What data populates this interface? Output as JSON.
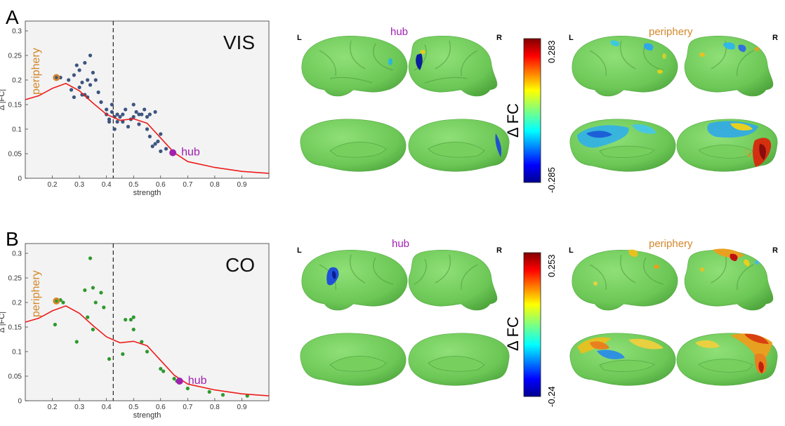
{
  "panels": [
    {
      "letter": "A",
      "network": "VIS",
      "hub_label": "hub",
      "periphery_label": "periphery",
      "hemi_left": "L",
      "hemi_right": "R",
      "colorbar": {
        "label": "Δ FC",
        "max": "0.283",
        "min": "-0.285"
      },
      "colors": {
        "points": "#3d5580",
        "periphery": "#d4872a",
        "hub": "#a020b0",
        "curve": "#ee1c1c"
      }
    },
    {
      "letter": "B",
      "network": "CO",
      "hub_label": "hub",
      "periphery_label": "periphery",
      "hemi_left": "L",
      "hemi_right": "R",
      "colorbar": {
        "label": "Δ FC",
        "max": "0.253",
        "min": "-0.24"
      },
      "colors": {
        "points": "#2e9a2e",
        "periphery": "#d4872a",
        "hub": "#a020b0",
        "curve": "#ee1c1c"
      }
    }
  ],
  "chart_data": [
    {
      "type": "scatter",
      "title": "VIS",
      "xlabel": "strength",
      "ylabel": "Δ |FC|",
      "xlim": [
        0.1,
        1.0
      ],
      "ylim": [
        0,
        0.32
      ],
      "xticks": [
        "0.2",
        "0.3",
        "0.4",
        "0.5",
        "0.6",
        "0.7",
        "0.8",
        "0.9"
      ],
      "yticks": [
        "0",
        "0.05",
        "0.1",
        "0.15",
        "0.2",
        "0.25",
        "0.3"
      ],
      "threshold_x": 0.425,
      "grid": false,
      "points": [
        [
          0.23,
          0.205
        ],
        [
          0.26,
          0.2
        ],
        [
          0.27,
          0.18
        ],
        [
          0.28,
          0.165
        ],
        [
          0.28,
          0.21
        ],
        [
          0.29,
          0.23
        ],
        [
          0.3,
          0.185
        ],
        [
          0.3,
          0.22
        ],
        [
          0.31,
          0.17
        ],
        [
          0.31,
          0.195
        ],
        [
          0.32,
          0.235
        ],
        [
          0.32,
          0.17
        ],
        [
          0.33,
          0.165
        ],
        [
          0.33,
          0.2
        ],
        [
          0.34,
          0.25
        ],
        [
          0.34,
          0.19
        ],
        [
          0.35,
          0.215
        ],
        [
          0.36,
          0.2
        ],
        [
          0.37,
          0.175
        ],
        [
          0.38,
          0.155
        ],
        [
          0.4,
          0.14
        ],
        [
          0.4,
          0.13
        ],
        [
          0.41,
          0.12
        ],
        [
          0.41,
          0.115
        ],
        [
          0.42,
          0.15
        ],
        [
          0.42,
          0.135
        ],
        [
          0.43,
          0.125
        ],
        [
          0.43,
          0.1
        ],
        [
          0.44,
          0.13
        ],
        [
          0.44,
          0.115
        ],
        [
          0.45,
          0.125
        ],
        [
          0.46,
          0.13
        ],
        [
          0.46,
          0.115
        ],
        [
          0.47,
          0.14
        ],
        [
          0.48,
          0.105
        ],
        [
          0.49,
          0.12
        ],
        [
          0.5,
          0.125
        ],
        [
          0.5,
          0.15
        ],
        [
          0.51,
          0.135
        ],
        [
          0.52,
          0.13
        ],
        [
          0.52,
          0.11
        ],
        [
          0.53,
          0.13
        ],
        [
          0.54,
          0.14
        ],
        [
          0.55,
          0.125
        ],
        [
          0.55,
          0.1
        ],
        [
          0.56,
          0.13
        ],
        [
          0.56,
          0.085
        ],
        [
          0.57,
          0.065
        ],
        [
          0.58,
          0.135
        ],
        [
          0.58,
          0.07
        ],
        [
          0.59,
          0.075
        ],
        [
          0.6,
          0.09
        ],
        [
          0.6,
          0.055
        ],
        [
          0.62,
          0.06
        ]
      ],
      "periphery_point": [
        0.215,
        0.205
      ],
      "hub_point": [
        0.645,
        0.052
      ],
      "curve": [
        [
          0.1,
          0.16
        ],
        [
          0.15,
          0.168
        ],
        [
          0.2,
          0.183
        ],
        [
          0.25,
          0.193
        ],
        [
          0.3,
          0.178
        ],
        [
          0.35,
          0.153
        ],
        [
          0.4,
          0.13
        ],
        [
          0.45,
          0.118
        ],
        [
          0.5,
          0.121
        ],
        [
          0.55,
          0.112
        ],
        [
          0.6,
          0.082
        ],
        [
          0.65,
          0.052
        ],
        [
          0.7,
          0.034
        ],
        [
          0.8,
          0.022
        ],
        [
          0.9,
          0.014
        ],
        [
          1.0,
          0.01
        ]
      ]
    },
    {
      "type": "scatter",
      "title": "CO",
      "xlabel": "strength",
      "ylabel": "Δ |FC|",
      "xlim": [
        0.1,
        1.0
      ],
      "ylim": [
        0,
        0.32
      ],
      "xticks": [
        "0.2",
        "0.3",
        "0.4",
        "0.5",
        "0.6",
        "0.7",
        "0.8",
        "0.9"
      ],
      "yticks": [
        "0",
        "0.05",
        "0.1",
        "0.15",
        "0.2",
        "0.25",
        "0.3"
      ],
      "threshold_x": 0.425,
      "grid": false,
      "points": [
        [
          0.21,
          0.155
        ],
        [
          0.23,
          0.205
        ],
        [
          0.24,
          0.2
        ],
        [
          0.29,
          0.12
        ],
        [
          0.32,
          0.225
        ],
        [
          0.33,
          0.17
        ],
        [
          0.34,
          0.29
        ],
        [
          0.35,
          0.23
        ],
        [
          0.35,
          0.145
        ],
        [
          0.36,
          0.2
        ],
        [
          0.38,
          0.22
        ],
        [
          0.39,
          0.19
        ],
        [
          0.41,
          0.085
        ],
        [
          0.46,
          0.095
        ],
        [
          0.47,
          0.165
        ],
        [
          0.49,
          0.165
        ],
        [
          0.5,
          0.17
        ],
        [
          0.5,
          0.145
        ],
        [
          0.53,
          0.12
        ],
        [
          0.55,
          0.1
        ],
        [
          0.6,
          0.065
        ],
        [
          0.61,
          0.06
        ],
        [
          0.65,
          0.045
        ],
        [
          0.66,
          0.04
        ],
        [
          0.7,
          0.025
        ],
        [
          0.78,
          0.018
        ],
        [
          0.83,
          0.012
        ],
        [
          0.92,
          0.01
        ]
      ],
      "periphery_point": [
        0.215,
        0.203
      ],
      "hub_point": [
        0.67,
        0.04
      ],
      "curve": [
        [
          0.1,
          0.16
        ],
        [
          0.15,
          0.168
        ],
        [
          0.2,
          0.183
        ],
        [
          0.25,
          0.193
        ],
        [
          0.3,
          0.178
        ],
        [
          0.35,
          0.153
        ],
        [
          0.4,
          0.13
        ],
        [
          0.45,
          0.118
        ],
        [
          0.5,
          0.121
        ],
        [
          0.55,
          0.112
        ],
        [
          0.6,
          0.082
        ],
        [
          0.65,
          0.052
        ],
        [
          0.7,
          0.034
        ],
        [
          0.8,
          0.022
        ],
        [
          0.9,
          0.014
        ],
        [
          1.0,
          0.01
        ]
      ]
    }
  ]
}
